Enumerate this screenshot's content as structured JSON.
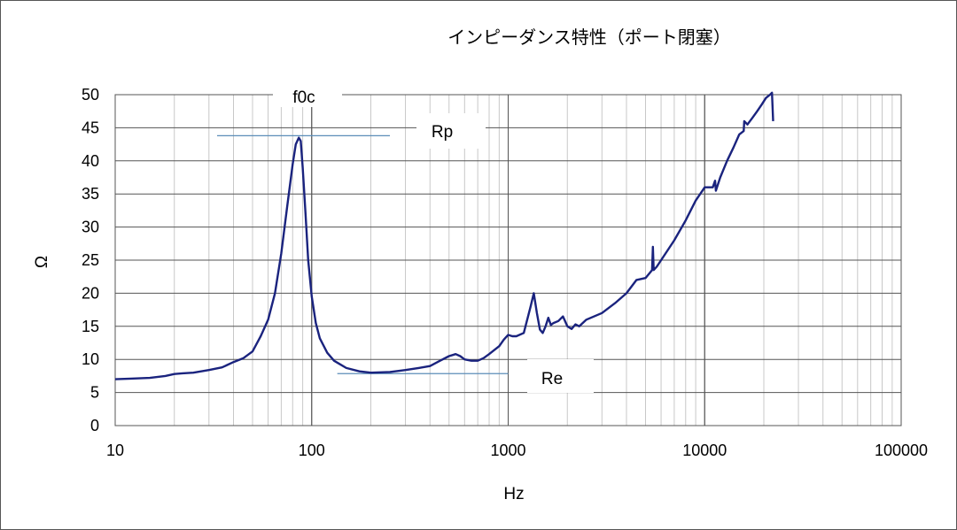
{
  "chart_data": {
    "type": "line",
    "title": "インピーダンス特性（ポート閉塞）",
    "xlabel": "Hz",
    "ylabel": "Ω",
    "xscale": "log",
    "xlim": [
      10,
      100000
    ],
    "ylim": [
      0,
      50
    ],
    "x_ticks": [
      "10",
      "100",
      "1000",
      "10000",
      "100000"
    ],
    "y_ticks": [
      "0",
      "5",
      "10",
      "15",
      "20",
      "25",
      "30",
      "35",
      "40",
      "45",
      "50"
    ],
    "grid": true,
    "series_color": "#1a237e",
    "reference_line_color": "#5b8db8",
    "series": [
      {
        "x": [
          10,
          12,
          15,
          18,
          20,
          22,
          25,
          30,
          35,
          40,
          45,
          50,
          55,
          60,
          65,
          70,
          75,
          80,
          83,
          86,
          88,
          90,
          93,
          96,
          100,
          105,
          110,
          120,
          130,
          150,
          175,
          200,
          250,
          300,
          350,
          400,
          450,
          500,
          540,
          570,
          600,
          650,
          700,
          750,
          800,
          900,
          950,
          1000,
          1050,
          1100,
          1200,
          1300,
          1350,
          1400,
          1450,
          1500,
          1550,
          1600,
          1650,
          1700,
          1800,
          1900,
          2000,
          2100,
          2200,
          2300,
          2500,
          3000,
          3500,
          4000,
          4500,
          5000,
          5400,
          5450,
          5500,
          5700,
          6000,
          7000,
          8000,
          9000,
          10000,
          11000,
          11300,
          11400,
          12000,
          13000,
          14000,
          15000,
          15800,
          15900,
          16500,
          17500,
          18500,
          19500,
          20500,
          21500,
          22000,
          22300
        ],
        "y": [
          7.0,
          7.1,
          7.2,
          7.5,
          7.8,
          7.9,
          8.0,
          8.4,
          8.8,
          9.6,
          10.2,
          11.2,
          13.5,
          16.0,
          20.0,
          26.0,
          33.0,
          39.5,
          42.5,
          43.5,
          43.0,
          39.0,
          32.0,
          25.0,
          19.5,
          15.5,
          13.2,
          11.0,
          9.8,
          8.7,
          8.2,
          8.0,
          8.1,
          8.4,
          8.7,
          9.0,
          9.8,
          10.5,
          10.8,
          10.5,
          10.0,
          9.8,
          9.8,
          10.2,
          10.8,
          12.0,
          13.0,
          13.7,
          13.5,
          13.5,
          14.0,
          18.0,
          20.0,
          17.0,
          14.5,
          14.0,
          15.0,
          16.3,
          15.2,
          15.5,
          15.8,
          16.5,
          15.0,
          14.6,
          15.3,
          15.0,
          16.0,
          17.0,
          18.5,
          20.0,
          22.0,
          22.3,
          23.5,
          27.0,
          23.5,
          24.0,
          25.0,
          28.0,
          31.0,
          34.0,
          36.0,
          36.0,
          37.0,
          35.5,
          37.5,
          40.0,
          42.0,
          44.0,
          44.5,
          46.0,
          45.5,
          46.5,
          47.5,
          48.5,
          49.5,
          50.0,
          50.5,
          46.0
        ]
      }
    ],
    "annotations": [
      {
        "label": "f0c"
      },
      {
        "label": "Rp"
      },
      {
        "label": "Re"
      }
    ]
  }
}
